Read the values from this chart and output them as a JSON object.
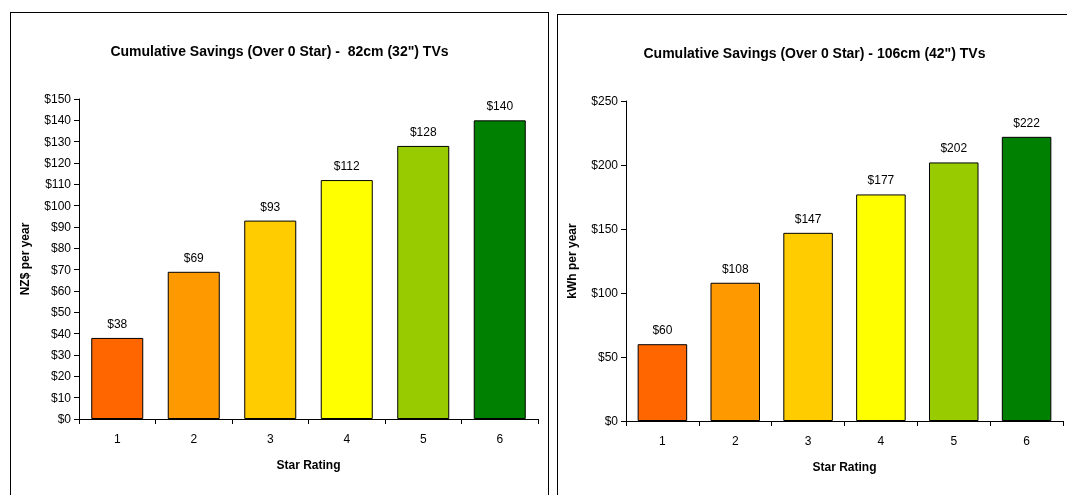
{
  "chart_data": [
    {
      "type": "bar",
      "title": "Cumulative Savings (Over 0 Star) -  82cm (32\") TVs",
      "xlabel": "Star Rating",
      "ylabel": "NZ$ per year",
      "categories": [
        "1",
        "2",
        "3",
        "4",
        "5",
        "6"
      ],
      "values": [
        38,
        69,
        93,
        112,
        128,
        140
      ],
      "colors": [
        "#ff6600",
        "#ff9900",
        "#ffcc00",
        "#ffff00",
        "#99cc00",
        "#008000"
      ],
      "value_labels": [
        "$38",
        "$69",
        "$93",
        "$112",
        "$128",
        "$140"
      ],
      "ylim": [
        0,
        150
      ],
      "yticks": [
        {
          "value": 0,
          "label": "$0"
        },
        {
          "value": 10,
          "label": "$10"
        },
        {
          "value": 20,
          "label": "$20"
        },
        {
          "value": 30,
          "label": "$30"
        },
        {
          "value": 40,
          "label": "$40"
        },
        {
          "value": 50,
          "label": "$50"
        },
        {
          "value": 60,
          "label": "$60"
        },
        {
          "value": 70,
          "label": "$70"
        },
        {
          "value": 80,
          "label": "$80"
        },
        {
          "value": 90,
          "label": "$90"
        },
        {
          "value": 100,
          "label": "$100"
        },
        {
          "value": 110,
          "label": "$110"
        },
        {
          "value": 120,
          "label": "$120"
        },
        {
          "value": 130,
          "label": "$130"
        },
        {
          "value": 140,
          "label": "$140"
        },
        {
          "value": 150,
          "label": "$150"
        }
      ]
    },
    {
      "type": "bar",
      "title": "Cumulative Savings (Over 0 Star) - 106cm (42\") TVs",
      "xlabel": "Star Rating",
      "ylabel": "kWh per year",
      "categories": [
        "1",
        "2",
        "3",
        "4",
        "5",
        "6"
      ],
      "values": [
        60,
        108,
        147,
        177,
        202,
        222
      ],
      "colors": [
        "#ff6600",
        "#ff9900",
        "#ffcc00",
        "#ffff00",
        "#99cc00",
        "#008000"
      ],
      "value_labels": [
        "$60",
        "$108",
        "$147",
        "$177",
        "$202",
        "$222"
      ],
      "ylim": [
        0,
        250
      ],
      "yticks": [
        {
          "value": 0,
          "label": "$0"
        },
        {
          "value": 50,
          "label": "$50"
        },
        {
          "value": 100,
          "label": "$100"
        },
        {
          "value": 150,
          "label": "$150"
        },
        {
          "value": 200,
          "label": "$200"
        },
        {
          "value": 250,
          "label": "$250"
        }
      ]
    }
  ]
}
